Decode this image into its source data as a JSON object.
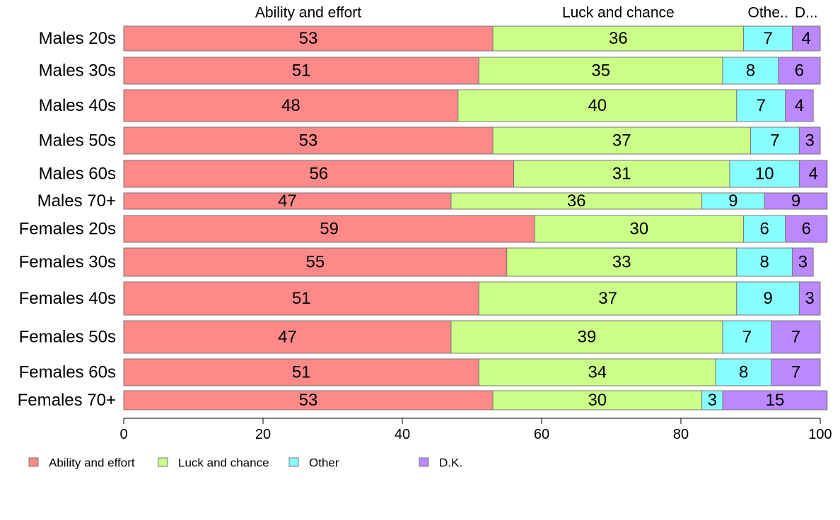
{
  "chart_data": {
    "type": "bar",
    "orientation": "horizontal",
    "stacked": true,
    "categories": [
      "Males 20s",
      "Males 30s",
      "Males 40s",
      "Males 50s",
      "Males 60s",
      "Males 70+",
      "Females 20s",
      "Females 30s",
      "Females 40s",
      "Females 50s",
      "Females 60s",
      "Females 70+"
    ],
    "series": [
      {
        "name": "Ability and effort",
        "color": "#ff8888",
        "values": [
          53,
          51,
          48,
          53,
          56,
          47,
          59,
          55,
          51,
          47,
          51,
          53
        ]
      },
      {
        "name": "Luck and chance",
        "color": "#ccff88",
        "values": [
          36,
          35,
          40,
          37,
          31,
          36,
          30,
          33,
          37,
          39,
          34,
          30
        ]
      },
      {
        "name": "Other",
        "color": "#88ffff",
        "values": [
          7,
          8,
          7,
          7,
          10,
          9,
          6,
          8,
          9,
          7,
          8,
          3
        ]
      },
      {
        "name": "D.K.",
        "color": "#bb88ff",
        "values": [
          4,
          6,
          4,
          3,
          4,
          9,
          6,
          3,
          3,
          7,
          7,
          15
        ]
      }
    ],
    "top_labels": [
      "Ability and effort",
      "Luck and chance",
      "Othe..",
      "D..."
    ],
    "x_ticks": [
      0,
      20,
      40,
      60,
      80,
      100
    ],
    "xlim": [
      0,
      100
    ],
    "legend_position": "bottom-left",
    "grid": false
  }
}
